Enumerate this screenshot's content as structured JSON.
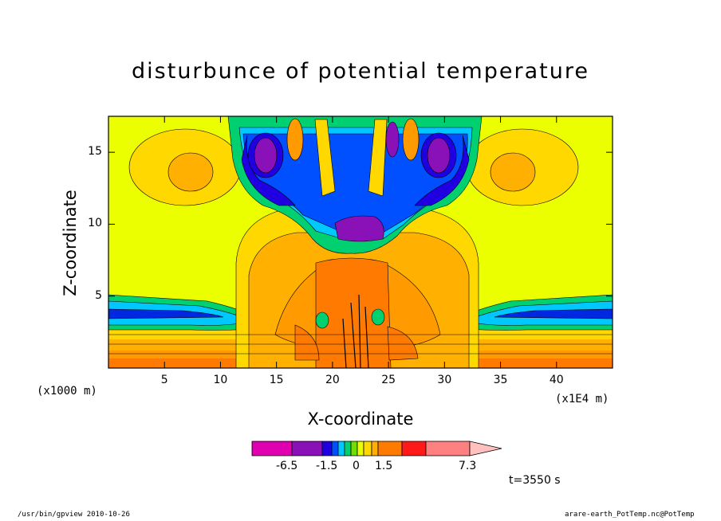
{
  "chart_data": {
    "type": "heatmap",
    "title": "disturbunce of potential temperature",
    "xlabel": "X-coordinate",
    "ylabel": "Z-coordinate",
    "x_unit_note": "(x1000 m)",
    "x_scale_note": "(x1E4 m)",
    "xlim": [
      0,
      45
    ],
    "ylim": [
      0,
      17.5
    ],
    "x_ticks": [
      "5",
      "10",
      "15",
      "20",
      "25",
      "30",
      "35",
      "40"
    ],
    "y_ticks": [
      "5",
      "10",
      "15"
    ],
    "x_tick_values": [
      5,
      10,
      15,
      20,
      25,
      30,
      35,
      40
    ],
    "y_tick_values": [
      5,
      10,
      15
    ],
    "colorbar": {
      "labels": [
        "-6.5",
        "-1.5",
        "0",
        "1.5",
        "7.3"
      ],
      "colors": [
        "#e000b0",
        "#8a10b8",
        "#2000e0",
        "#0050ff",
        "#00c8ff",
        "#00d070",
        "#70e000",
        "#e8ff00",
        "#ffd800",
        "#ffb000",
        "#ff7a00",
        "#ff1a1a",
        "#ff8080",
        "#ffc0c0"
      ],
      "range": [
        -6.5,
        7.3
      ]
    },
    "annotation": "t=3550 s"
  },
  "footer": {
    "left": "/usr/bin/gpview   2010-10-26",
    "right": "arare-earth_PotTemp.nc@PotTemp"
  }
}
